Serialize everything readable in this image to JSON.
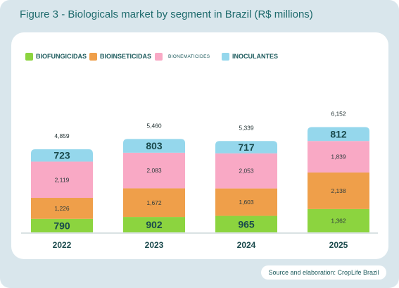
{
  "title": "Figure 3 - Biologicals market by segment in Brazil (R$ millions)",
  "source": "Source and elaboration: CropLife Brazil",
  "colors": {
    "biofungicidas": "#8cd43f",
    "bioinseticidas": "#ef9f4a",
    "bionematicides": "#f9a9c5",
    "inoculantes": "#95d7ec"
  },
  "chart_data": {
    "type": "bar",
    "stacked": true,
    "categories": [
      "2022",
      "2023",
      "2024",
      "2025"
    ],
    "series": [
      {
        "name": "BIOFUNGICIDAS",
        "values": [
          790,
          902,
          965,
          1362
        ],
        "labels": [
          "790",
          "902",
          "965",
          "1,362"
        ]
      },
      {
        "name": "BIOINSETICIDAS",
        "values": [
          1226,
          1672,
          1603,
          2138
        ],
        "labels": [
          "1,226",
          "1,672",
          "1,603",
          "2,138"
        ]
      },
      {
        "name": "BIONEMATICIDES",
        "values": [
          2119,
          2083,
          2053,
          1839
        ],
        "labels": [
          "2,119",
          "2,083",
          "2,053",
          "1,839"
        ]
      },
      {
        "name": "INOCULANTES",
        "values": [
          723,
          803,
          717,
          812
        ],
        "labels": [
          "723",
          "803",
          "717",
          "812"
        ]
      }
    ],
    "totals": [
      "4,859",
      "5,460",
      "5,339",
      "6,152"
    ],
    "legend_position": "top-left",
    "grid": false
  }
}
